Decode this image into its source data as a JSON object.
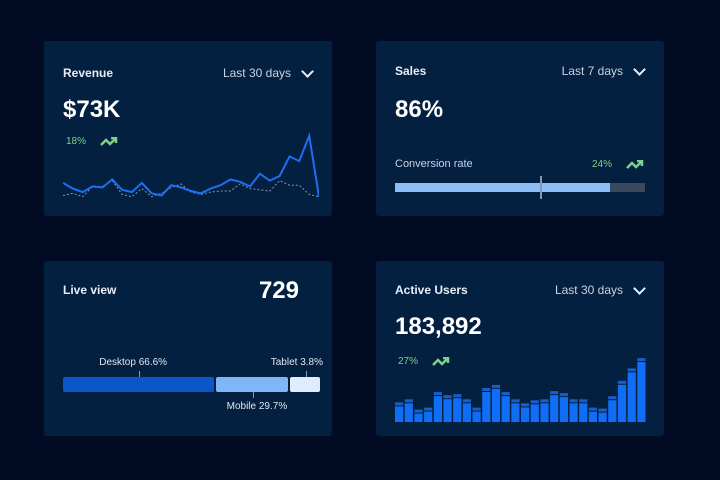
{
  "revenue": {
    "title": "Revenue",
    "range": "Last 30 days",
    "value": "$73K",
    "change": "18%",
    "trend_icon": "trend-up-icon",
    "series": [
      14,
      9,
      6,
      11,
      10,
      17,
      8,
      6,
      14,
      5,
      3,
      12,
      10,
      7,
      5,
      9,
      12,
      17,
      15,
      11,
      22,
      16,
      20,
      37,
      33,
      55,
      2
    ],
    "comparison": [
      3,
      5,
      2,
      11,
      11,
      16,
      4,
      2,
      9,
      2,
      5,
      10,
      13,
      6,
      4,
      6,
      7,
      7,
      13,
      9,
      8,
      7,
      16,
      12,
      12,
      4,
      2
    ]
  },
  "sales": {
    "title": "Sales",
    "range": "Last 7 days",
    "value": "86%",
    "conversion_label": "Conversion rate",
    "change": "24%",
    "conversion_fraction": 0.86,
    "target_fraction": 0.58
  },
  "live": {
    "title": "Live view",
    "value": "729",
    "segments": [
      {
        "label": "Desktop 66.6%",
        "pct": 66.6,
        "color": "#0a58c8"
      },
      {
        "label": "Mobile 29.7%",
        "pct": 29.7,
        "color": "#7fb6f7"
      },
      {
        "label": "Tablet 3.8%",
        "pct": 3.8,
        "color": "#deecfd"
      }
    ]
  },
  "users": {
    "title": "Active Users",
    "range": "Last 30 days",
    "value": "183,892",
    "change": "27%",
    "bars": [
      19,
      22,
      12,
      14,
      29,
      26,
      27,
      22,
      14,
      33,
      36,
      29,
      22,
      18,
      21,
      22,
      30,
      28,
      22,
      22,
      14,
      13,
      25,
      40,
      52,
      62
    ]
  },
  "colors": {
    "background": "#020b24",
    "card": "#032040",
    "accent": "#1e6ef0",
    "positive": "#7fd08a"
  }
}
